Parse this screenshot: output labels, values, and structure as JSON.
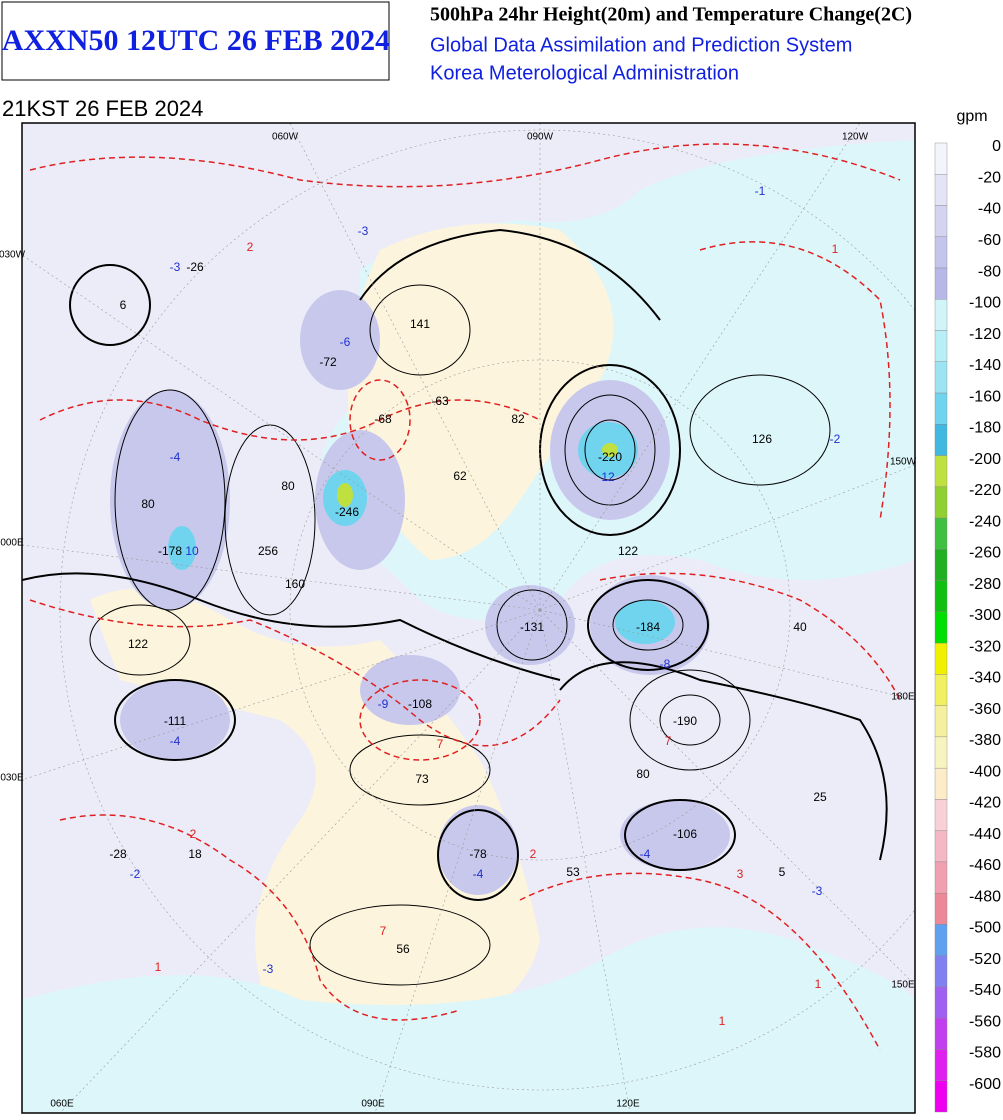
{
  "header": {
    "product": "AXXN50 12UTC 26 FEB 2024",
    "title": "500hPa 24hr Height(20m) and Temperature Change(2C)",
    "system": "Global Data Assimilation and Prediction System",
    "agency": "Korea Meterological Administration",
    "valid": "21KST 26 FEB 2024"
  },
  "legend": {
    "unit": "gpm",
    "items": [
      {
        "label": "0",
        "color": "#f4f4fc"
      },
      {
        "label": "-20",
        "color": "#e4e4f6"
      },
      {
        "label": "-40",
        "color": "#d4d4f0"
      },
      {
        "label": "-60",
        "color": "#c4c4ec"
      },
      {
        "label": "-80",
        "color": "#b8b8e8"
      },
      {
        "label": "-100",
        "color": "#d0f4f8"
      },
      {
        "label": "-120",
        "color": "#b8eef6"
      },
      {
        "label": "-140",
        "color": "#9ce4f2"
      },
      {
        "label": "-160",
        "color": "#70d4ee"
      },
      {
        "label": "-180",
        "color": "#40b8e0"
      },
      {
        "label": "-200",
        "color": "#c0e040"
      },
      {
        "label": "-220",
        "color": "#90d030"
      },
      {
        "label": "-240",
        "color": "#40c040"
      },
      {
        "label": "-260",
        "color": "#20b020"
      },
      {
        "label": "-280",
        "color": "#10c010"
      },
      {
        "label": "-300",
        "color": "#00e000"
      },
      {
        "label": "-320",
        "color": "#f0f000"
      },
      {
        "label": "-340",
        "color": "#f0f060"
      },
      {
        "label": "-360",
        "color": "#f4f0a0"
      },
      {
        "label": "-380",
        "color": "#f8f4c0"
      },
      {
        "label": "-400",
        "color": "#fcecc8"
      },
      {
        "label": "-420",
        "color": "#f8d0d8"
      },
      {
        "label": "-440",
        "color": "#f4b8c4"
      },
      {
        "label": "-460",
        "color": "#f0a0b0"
      },
      {
        "label": "-480",
        "color": "#ec8898"
      },
      {
        "label": "-500",
        "color": "#60a0f0"
      },
      {
        "label": "-520",
        "color": "#8080f0"
      },
      {
        "label": "-540",
        "color": "#a060f0"
      },
      {
        "label": "-560",
        "color": "#c040f0"
      },
      {
        "label": "-580",
        "color": "#e020f0"
      },
      {
        "label": "-600",
        "color": "#f000f0"
      }
    ]
  },
  "map": {
    "longitudes": [
      "060W",
      "090W",
      "120W",
      "030W",
      "000E",
      "030E",
      "060E",
      "090E",
      "120E",
      "150W",
      "180E",
      "150E"
    ],
    "labels": [
      {
        "text": "-26",
        "color": "#000"
      },
      {
        "text": "6",
        "color": "#000"
      },
      {
        "text": "-72",
        "color": "#000"
      },
      {
        "text": "141",
        "color": "#000"
      },
      {
        "text": "-63",
        "color": "#000"
      },
      {
        "text": "82",
        "color": "#000"
      },
      {
        "text": "-220",
        "color": "#000"
      },
      {
        "text": "126",
        "color": "#000"
      },
      {
        "text": "-68",
        "color": "#000"
      },
      {
        "text": "62",
        "color": "#000"
      },
      {
        "text": "-246",
        "color": "#000"
      },
      {
        "text": "-178",
        "color": "#000"
      },
      {
        "text": "256",
        "color": "#000"
      },
      {
        "text": "160",
        "color": "#000"
      },
      {
        "text": "122",
        "color": "#000"
      },
      {
        "text": "122",
        "color": "#000"
      },
      {
        "text": "-131",
        "color": "#000"
      },
      {
        "text": "-184",
        "color": "#000"
      },
      {
        "text": "40",
        "color": "#000"
      },
      {
        "text": "-111",
        "color": "#000"
      },
      {
        "text": "-108",
        "color": "#000"
      },
      {
        "text": "-190",
        "color": "#000"
      },
      {
        "text": "73",
        "color": "#000"
      },
      {
        "text": "-28",
        "color": "#000"
      },
      {
        "text": "18",
        "color": "#000"
      },
      {
        "text": "-78",
        "color": "#000"
      },
      {
        "text": "-106",
        "color": "#000"
      },
      {
        "text": "53",
        "color": "#000"
      },
      {
        "text": "5",
        "color": "#000"
      },
      {
        "text": "25",
        "color": "#000"
      },
      {
        "text": "56",
        "color": "#000"
      },
      {
        "text": "80",
        "color": "#000"
      },
      {
        "text": "80",
        "color": "#000"
      },
      {
        "text": "80",
        "color": "#000"
      },
      {
        "text": "-3",
        "color": "#2030d0"
      },
      {
        "text": "-3",
        "color": "#2030d0"
      },
      {
        "text": "-6",
        "color": "#2030d0"
      },
      {
        "text": "-4",
        "color": "#2030d0"
      },
      {
        "text": "-2",
        "color": "#2030d0"
      },
      {
        "text": "-1",
        "color": "#2030d0"
      },
      {
        "text": "12",
        "color": "#2030d0"
      },
      {
        "text": "10",
        "color": "#2030d0"
      },
      {
        "text": "-8",
        "color": "#2030d0"
      },
      {
        "text": "-4",
        "color": "#2030d0"
      },
      {
        "text": "-9",
        "color": "#2030d0"
      },
      {
        "text": "-4",
        "color": "#2030d0"
      },
      {
        "text": "-4",
        "color": "#2030d0"
      },
      {
        "text": "-2",
        "color": "#2030d0"
      },
      {
        "text": "-3",
        "color": "#2030d0"
      },
      {
        "text": "-3",
        "color": "#2030d0"
      },
      {
        "text": "2",
        "color": "#e02020"
      },
      {
        "text": "1",
        "color": "#e02020"
      },
      {
        "text": "3",
        "color": "#e02020"
      },
      {
        "text": "1",
        "color": "#e02020"
      },
      {
        "text": "1",
        "color": "#e02020"
      },
      {
        "text": "1",
        "color": "#e02020"
      },
      {
        "text": "2",
        "color": "#e02020"
      },
      {
        "text": "7",
        "color": "#e02020"
      },
      {
        "text": "7",
        "color": "#e02020"
      },
      {
        "text": "2",
        "color": "#e02020"
      },
      {
        "text": "7",
        "color": "#e02020"
      }
    ]
  }
}
